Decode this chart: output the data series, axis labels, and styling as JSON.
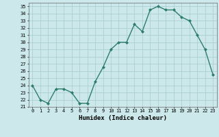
{
  "title": "",
  "xlabel": "Humidex (Indice chaleur)",
  "ylabel": "",
  "x": [
    0,
    1,
    2,
    3,
    4,
    5,
    6,
    7,
    8,
    9,
    10,
    11,
    12,
    13,
    14,
    15,
    16,
    17,
    18,
    19,
    20,
    21,
    22,
    23
  ],
  "y": [
    24,
    22,
    21.5,
    23.5,
    23.5,
    23,
    21.5,
    21.5,
    24.5,
    26.5,
    29,
    30,
    30,
    32.5,
    31.5,
    34.5,
    35,
    34.5,
    34.5,
    33.5,
    33,
    31,
    29,
    25.5
  ],
  "line_color": "#2d7d6b",
  "bg_color": "#cce8ea",
  "grid_color": "#aacfd3",
  "xlim_min": -0.5,
  "xlim_max": 23.5,
  "ylim_min": 21,
  "ylim_max": 35.5,
  "marker_size": 2.0,
  "linewidth": 1.0,
  "tick_fontsize": 5.0,
  "xlabel_fontsize": 6.5
}
